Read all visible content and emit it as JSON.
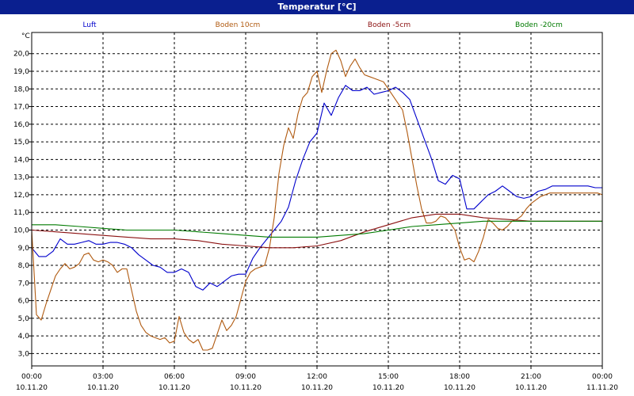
{
  "window": {
    "title": "Temperatur [°C]"
  },
  "chart_data": {
    "type": "line",
    "ylabel": "°C",
    "ylim": [
      2.3,
      21.2
    ],
    "y_ticks": [
      "3,0",
      "4,0",
      "5,0",
      "6,0",
      "7,0",
      "8,0",
      "9,0",
      "10,0",
      "11,0",
      "12,0",
      "13,0",
      "14,0",
      "15,0",
      "16,0",
      "17,0",
      "18,0",
      "19,0",
      "20,0"
    ],
    "y_tick_values": [
      3,
      4,
      5,
      6,
      7,
      8,
      9,
      10,
      11,
      12,
      13,
      14,
      15,
      16,
      17,
      18,
      19,
      20
    ],
    "x_ticks": [
      {
        "time": "00:00",
        "date": "10.11.20"
      },
      {
        "time": "03:00",
        "date": "10.11.20"
      },
      {
        "time": "06:00",
        "date": "10.11.20"
      },
      {
        "time": "09:00",
        "date": "10.11.20"
      },
      {
        "time": "12:00",
        "date": "10.11.20"
      },
      {
        "time": "15:00",
        "date": "10.11.20"
      },
      {
        "time": "18:00",
        "date": "10.11.20"
      },
      {
        "time": "21:00",
        "date": "10.11.20"
      },
      {
        "time": "00:00",
        "date": "11.11.20"
      }
    ],
    "x_range_hours": [
      0,
      24
    ],
    "grid": true,
    "legend_position": "top",
    "series": [
      {
        "name": "Luft",
        "color": "#0000cc",
        "x": [
          0,
          0.3,
          0.6,
          0.9,
          1.2,
          1.5,
          1.8,
          2.1,
          2.4,
          2.7,
          3.0,
          3.3,
          3.6,
          3.9,
          4.2,
          4.5,
          4.8,
          5.1,
          5.4,
          5.7,
          6.0,
          6.3,
          6.6,
          6.9,
          7.2,
          7.5,
          7.8,
          8.1,
          8.4,
          8.7,
          9.0,
          9.3,
          9.6,
          9.9,
          10.2,
          10.5,
          10.8,
          11.1,
          11.4,
          11.7,
          12.0,
          12.3,
          12.6,
          12.9,
          13.2,
          13.5,
          13.8,
          14.1,
          14.4,
          14.7,
          15.0,
          15.3,
          15.6,
          15.9,
          16.2,
          16.5,
          16.8,
          17.1,
          17.4,
          17.7,
          18.0,
          18.3,
          18.6,
          18.9,
          19.2,
          19.5,
          19.8,
          20.1,
          20.4,
          20.7,
          21.0,
          21.3,
          21.6,
          21.9,
          22.2,
          22.5,
          22.8,
          23.1,
          23.4,
          23.7,
          24.0
        ],
        "values": [
          9.0,
          8.5,
          8.5,
          8.8,
          9.5,
          9.2,
          9.2,
          9.3,
          9.4,
          9.2,
          9.2,
          9.3,
          9.3,
          9.2,
          9.0,
          8.6,
          8.3,
          8.0,
          7.9,
          7.6,
          7.6,
          7.8,
          7.6,
          6.8,
          6.6,
          7.0,
          6.8,
          7.1,
          7.4,
          7.5,
          7.5,
          8.4,
          9.0,
          9.5,
          10.0,
          10.5,
          11.3,
          12.8,
          14.0,
          15.0,
          15.5,
          17.2,
          16.5,
          17.5,
          18.2,
          17.9,
          17.9,
          18.1,
          17.7,
          17.8,
          17.9,
          18.1,
          17.8,
          17.4,
          16.3,
          15.2,
          14.1,
          12.8,
          12.6,
          13.1,
          12.9,
          11.2,
          11.2,
          11.6,
          12.0,
          12.2,
          12.5,
          12.2,
          11.9,
          11.8,
          11.9,
          12.2,
          12.3,
          12.5,
          12.5,
          12.5,
          12.5,
          12.5,
          12.5,
          12.4,
          12.4
        ]
      },
      {
        "name": "Boden 10cm",
        "color": "#b05a10",
        "x": [
          0,
          0.2,
          0.4,
          0.6,
          0.8,
          1.0,
          1.2,
          1.4,
          1.6,
          1.8,
          2.0,
          2.2,
          2.4,
          2.6,
          2.8,
          3.0,
          3.2,
          3.4,
          3.6,
          3.8,
          4.0,
          4.2,
          4.4,
          4.6,
          4.8,
          5.0,
          5.2,
          5.4,
          5.6,
          5.8,
          6.0,
          6.2,
          6.4,
          6.6,
          6.8,
          7.0,
          7.2,
          7.4,
          7.6,
          7.8,
          8.0,
          8.2,
          8.4,
          8.6,
          8.8,
          9.0,
          9.2,
          9.4,
          9.6,
          9.8,
          10.0,
          10.2,
          10.4,
          10.6,
          10.8,
          11.0,
          11.2,
          11.4,
          11.6,
          11.8,
          12.0,
          12.2,
          12.4,
          12.6,
          12.8,
          13.0,
          13.2,
          13.4,
          13.6,
          13.8,
          14.0,
          14.2,
          14.4,
          14.6,
          14.8,
          15.0,
          15.2,
          15.4,
          15.6,
          15.8,
          16.0,
          16.2,
          16.4,
          16.6,
          16.8,
          17.0,
          17.2,
          17.4,
          17.6,
          17.8,
          18.0,
          18.2,
          18.4,
          18.6,
          18.8,
          19.0,
          19.2,
          19.4,
          19.6,
          19.8,
          20.0,
          20.2,
          20.4,
          20.6,
          20.8,
          21.0,
          21.2,
          21.4,
          21.6,
          21.8,
          22.0,
          22.2,
          22.4,
          22.6,
          22.8,
          23.0,
          23.2,
          23.4,
          23.6,
          23.8,
          24.0
        ],
        "values": [
          10.0,
          5.2,
          4.9,
          5.8,
          6.6,
          7.4,
          7.8,
          8.1,
          7.8,
          7.9,
          8.1,
          8.6,
          8.7,
          8.3,
          8.2,
          8.3,
          8.2,
          8.0,
          7.6,
          7.8,
          7.8,
          6.6,
          5.4,
          4.6,
          4.2,
          4.0,
          3.9,
          3.8,
          3.9,
          3.6,
          3.7,
          5.1,
          4.2,
          3.8,
          3.6,
          3.8,
          3.2,
          3.2,
          3.3,
          4.1,
          4.9,
          4.3,
          4.6,
          5.1,
          6.1,
          7.1,
          7.6,
          7.8,
          7.9,
          8.0,
          9.0,
          10.7,
          13.2,
          14.8,
          15.8,
          15.2,
          16.6,
          17.5,
          17.8,
          18.7,
          19.0,
          17.8,
          19.0,
          20.0,
          20.2,
          19.6,
          18.7,
          19.3,
          19.7,
          19.2,
          18.8,
          18.7,
          18.6,
          18.5,
          18.4,
          18.0,
          17.6,
          17.2,
          16.8,
          15.5,
          14.0,
          12.5,
          11.2,
          10.4,
          10.4,
          10.5,
          10.8,
          10.7,
          10.4,
          10.0,
          9.0,
          8.3,
          8.4,
          8.2,
          8.8,
          9.6,
          10.6,
          10.4,
          10.1,
          10.0,
          10.2,
          10.5,
          10.6,
          10.8,
          11.2,
          11.5,
          11.7,
          11.9,
          12.0,
          12.1,
          12.1,
          12.1,
          12.1,
          12.1,
          12.1,
          12.1,
          12.1,
          12.1,
          12.1,
          12.1,
          12.0
        ]
      },
      {
        "name": "Boden -5cm",
        "color": "#8b1010",
        "x": [
          0,
          1,
          2,
          3,
          4,
          5,
          6,
          7,
          8,
          9,
          10,
          11,
          12,
          13,
          14,
          15,
          15.5,
          16,
          17,
          18,
          19,
          20,
          21,
          22,
          23,
          24
        ],
        "values": [
          10.0,
          9.9,
          9.8,
          9.7,
          9.6,
          9.5,
          9.5,
          9.4,
          9.2,
          9.1,
          9.0,
          9.0,
          9.1,
          9.4,
          9.9,
          10.3,
          10.5,
          10.7,
          10.9,
          10.9,
          10.7,
          10.6,
          10.5,
          10.5,
          10.5,
          10.5
        ]
      },
      {
        "name": "Boden -20cm",
        "color": "#007a00",
        "x": [
          0,
          1,
          2,
          3,
          4,
          5,
          6,
          7,
          8,
          9,
          10,
          11,
          12,
          13,
          14,
          15,
          16,
          17,
          18,
          19,
          20,
          21,
          22,
          23,
          24
        ],
        "values": [
          10.3,
          10.3,
          10.2,
          10.1,
          10.0,
          10.0,
          10.0,
          9.9,
          9.8,
          9.7,
          9.6,
          9.6,
          9.6,
          9.7,
          9.8,
          10.0,
          10.2,
          10.3,
          10.4,
          10.5,
          10.5,
          10.5,
          10.5,
          10.5,
          10.5
        ]
      }
    ]
  }
}
